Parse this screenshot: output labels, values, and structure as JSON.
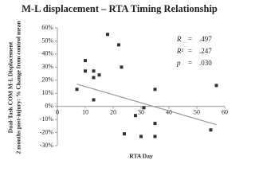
{
  "chart_data": {
    "type": "scatter",
    "title": "M-L displacement – RTA Timing Relationship",
    "xlabel": "RTA Day",
    "ylabel": [
      "Dual-Task COM M-L Displacement",
      "2 months post-injury: % Change from control mean"
    ],
    "x": [
      7,
      10,
      10,
      13,
      13,
      13,
      15,
      18,
      22,
      23,
      24,
      28,
      30,
      31,
      35,
      35,
      35,
      55,
      57
    ],
    "values": [
      13,
      35,
      27,
      27,
      22,
      5,
      24,
      55,
      47,
      30,
      -21,
      -7,
      -23,
      -1,
      13,
      -13,
      -23,
      -18,
      16
    ],
    "color": "#333333",
    "trendline": {
      "x": [
        7,
        57
      ],
      "values": [
        17,
        -14
      ],
      "color": "#999999"
    },
    "xlim": [
      0,
      60
    ],
    "xticks": [
      0,
      10,
      20,
      30,
      40,
      50,
      60
    ],
    "ylim": [
      -30,
      60
    ],
    "yticks": [
      {
        "value": 60,
        "label": "60%"
      },
      {
        "value": 50,
        "label": "50%"
      },
      {
        "value": 40,
        "label": "40%"
      },
      {
        "value": 30,
        "label": "30%"
      },
      {
        "value": 20,
        "label": "20%"
      },
      {
        "value": 10,
        "label": "10%"
      },
      {
        "value": 0,
        "label": "0%"
      },
      {
        "value": -10,
        "label": "-10%"
      },
      {
        "value": -20,
        "label": "-20%"
      },
      {
        "value": -30,
        "label": "-30%"
      }
    ],
    "stats": [
      {
        "name": "R",
        "eq": "=",
        "value": ".497"
      },
      {
        "name": "R²",
        "eq": "=",
        "value": ".247"
      },
      {
        "name": "p",
        "eq": "=",
        "value": ".030"
      }
    ]
  }
}
